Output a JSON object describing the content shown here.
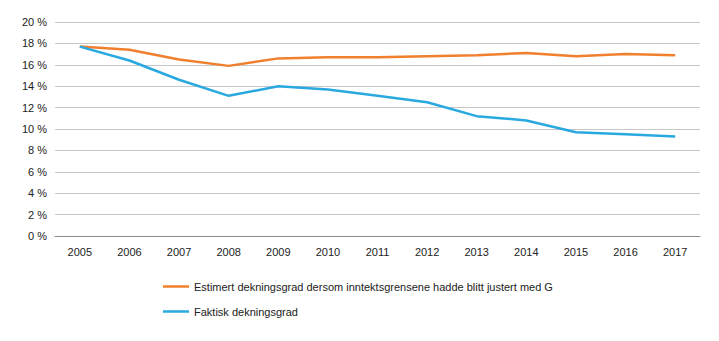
{
  "chart_data": {
    "type": "line",
    "categories": [
      "2005",
      "2006",
      "2007",
      "2008",
      "2009",
      "2010",
      "2011",
      "2012",
      "2013",
      "2014",
      "2015",
      "2016",
      "2017"
    ],
    "series": [
      {
        "name": "Estimert dekningsgrad dersom inntektsgrensene hadde blitt justert med G",
        "color": "#f07f2e",
        "values": [
          17.7,
          17.4,
          16.5,
          15.9,
          16.6,
          16.7,
          16.7,
          16.8,
          16.9,
          17.1,
          16.8,
          17.0,
          16.9
        ]
      },
      {
        "name": "Faktisk dekningsgrad",
        "color": "#29a9e0",
        "values": [
          17.7,
          16.4,
          14.6,
          13.1,
          14.0,
          13.7,
          13.1,
          12.5,
          11.2,
          10.8,
          9.7,
          9.5,
          9.3
        ]
      }
    ],
    "ylim": [
      0,
      20
    ],
    "yticks": [
      {
        "value": 0,
        "label": "0 %"
      },
      {
        "value": 2,
        "label": "2 %"
      },
      {
        "value": 4,
        "label": "4 %"
      },
      {
        "value": 6,
        "label": "6 %"
      },
      {
        "value": 8,
        "label": "8 %"
      },
      {
        "value": 10,
        "label": "10 %"
      },
      {
        "value": 12,
        "label": "12 %"
      },
      {
        "value": 14,
        "label": "14 %"
      },
      {
        "value": 16,
        "label": "16 %"
      },
      {
        "value": 18,
        "label": "18 %"
      },
      {
        "value": 20,
        "label": "20 %"
      }
    ],
    "grid": true,
    "legend": "bottom"
  }
}
